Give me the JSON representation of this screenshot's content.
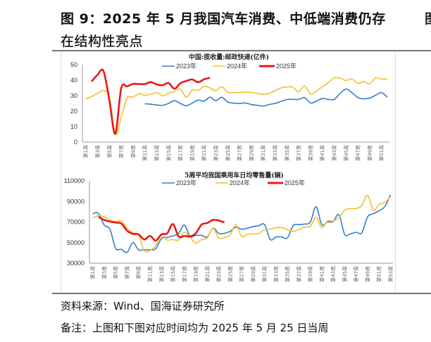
{
  "header": {
    "title_line1": "图 9：2025 年 5 月我国汽车消费、中低端消费仍存",
    "title_line2": "在结构性亮点",
    "cut_line1": "图",
    "cut_line2": "氵"
  },
  "footer": {
    "source": "资料来源：Wind、国海证券研究所",
    "note": "备注：上图和下图对应时间均为 2025 年 5 月 25 日当周"
  },
  "chart_data": [
    {
      "type": "line",
      "title": "中国:揽收量:邮政快递(亿件)",
      "ylim": [
        0,
        50
      ],
      "yticks": [
        0,
        10,
        20,
        30,
        40,
        50
      ],
      "x_label_format": "第{n}周",
      "x_weeks": 52,
      "x_tick_labels": [
        "第1周",
        "第3周",
        "第5周",
        "第7周",
        "第9周",
        "第11周",
        "第13周",
        "第15周",
        "第17周",
        "第19周",
        "第21周",
        "第23周",
        "第25周",
        "第27周",
        "第29周",
        "第31周",
        "第33周",
        "第35周",
        "第37周",
        "第39周",
        "第41周",
        "第43周",
        "第45周",
        "第47周",
        "第49周",
        "第51周"
      ],
      "legend_position": "top",
      "grid": false,
      "series": [
        {
          "name": "2023年",
          "color": "#2f7fd0",
          "start_week": 11,
          "values": [
            24.8,
            24.5,
            24.0,
            23.8,
            25.0,
            26.8,
            25.0,
            23.5,
            25.2,
            27.2,
            26.5,
            29.0,
            26.8,
            29.0,
            26.0,
            25.2,
            25.0,
            25.3,
            24.3,
            23.8,
            23.3,
            24.3,
            25.0,
            26.3,
            27.5,
            27.6,
            27.6,
            28.8,
            25.3,
            26.5,
            28.2,
            27.6,
            27.6,
            31.5,
            34.3,
            32.0,
            28.8,
            28.0,
            28.5,
            30.3,
            32.0,
            29.0
          ]
        },
        {
          "name": "2024年",
          "color": "#f5c02a",
          "start_week": 1,
          "values": [
            27.8,
            29.5,
            31.5,
            33.3,
            29.0,
            5.0,
            16.0,
            28.5,
            29.0,
            31.3,
            30.3,
            31.0,
            32.0,
            30.0,
            31.5,
            32.8,
            34.3,
            29.0,
            33.5,
            33.5,
            36.0,
            35.0,
            33.3,
            35.8,
            32.3,
            32.0,
            32.0,
            32.3,
            32.2,
            31.5,
            31.0,
            31.5,
            33.3,
            35.0,
            35.6,
            35.5,
            32.5,
            36.3,
            31.3,
            33.0,
            35.8,
            38.5,
            41.5,
            41.3,
            39.8,
            40.8,
            38.0,
            39.2,
            37.6,
            41.5,
            40.7,
            40.8
          ]
        },
        {
          "name": "2025年",
          "color": "#e81818",
          "start_week": 2,
          "values": [
            39.2,
            43.5,
            46.0,
            27.0,
            5.5,
            34.8,
            36.0,
            37.6,
            37.5,
            37.5,
            38.8,
            37.3,
            36.8,
            38.2,
            34.5,
            38.0,
            39.5,
            40.5,
            38.7,
            40.6,
            41.5
          ]
        }
      ]
    },
    {
      "type": "line",
      "title": "5周平均我国乘用车日均零售量(辆)",
      "ylim": [
        30000,
        110000
      ],
      "yticks": [
        30000,
        50000,
        70000,
        90000,
        110000
      ],
      "x_weeks": 53,
      "x_tick_labels": [
        "第1周",
        "第3周",
        "第5周",
        "第7周",
        "第9周",
        "第11周",
        "第13周",
        "第15周",
        "第17周",
        "第19周",
        "第21周",
        "第23周",
        "第25周",
        "第27周",
        "第29周",
        "第31周",
        "第33周",
        "第35周",
        "第37周",
        "第39周",
        "第41周",
        "第43周",
        "第45周",
        "第47周",
        "第49周",
        "第51周",
        "第53周"
      ],
      "legend_position": "top",
      "grid": false,
      "series": [
        {
          "name": "2023年",
          "color": "#2f7fd0",
          "start_week": 1,
          "values": [
            78000,
            78500,
            67000,
            63000,
            44500,
            43500,
            40500,
            50000,
            43000,
            43000,
            43200,
            44000,
            54000,
            55000,
            56500,
            59000,
            67000,
            56000,
            57000,
            57000,
            55500,
            64000,
            59000,
            59000,
            61000,
            65000,
            63000,
            64000,
            65500,
            66500,
            67500,
            53000,
            55500,
            55500,
            54500,
            66500,
            67500,
            68000,
            70000,
            85000,
            67500,
            70000,
            70500,
            77000,
            58000,
            58500,
            60000,
            59500,
            75000,
            78000,
            81000,
            85000,
            96500
          ]
        },
        {
          "name": "2024年",
          "color": "#f5c02a",
          "start_week": 1,
          "values": [
            74000,
            76000,
            75000,
            72000,
            70500,
            71000,
            64000,
            59500,
            57500,
            42000,
            42500,
            47000,
            57000,
            52500,
            53000,
            52500,
            60000,
            55000,
            49500,
            53000,
            54500,
            64000,
            54500,
            55000,
            57500,
            67500,
            56000,
            58000,
            58500,
            59000,
            62500,
            63000,
            64500,
            64500,
            62500,
            61000,
            62500,
            65000,
            66000,
            74500,
            64500,
            71000,
            71000,
            74500,
            81500,
            83000,
            83000,
            86000,
            96000,
            81500,
            87000,
            89000,
            94500
          ]
        },
        {
          "name": "2025年",
          "color": "#e81818",
          "start_week": 2,
          "values": [
            75000,
            72000,
            70500,
            69500,
            68500,
            61500,
            58500,
            58000,
            53000,
            56500,
            52000,
            58000,
            59000,
            68000,
            56000,
            56500,
            56000,
            59000,
            67500,
            69000,
            72000,
            71500,
            69500
          ]
        }
      ]
    }
  ]
}
